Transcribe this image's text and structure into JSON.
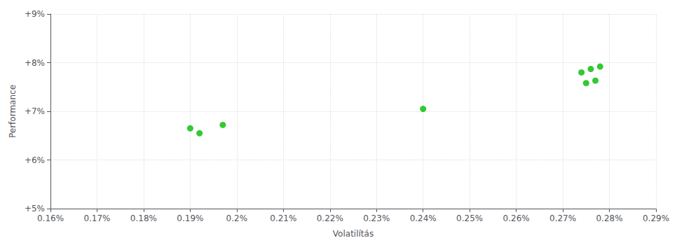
{
  "chart_data": {
    "type": "scatter",
    "x": [
      0.0019,
      0.00192,
      0.00197,
      0.0024,
      0.00274,
      0.00276,
      0.00278,
      0.00275,
      0.00277
    ],
    "values": [
      0.0665,
      0.0655,
      0.0672,
      0.0705,
      0.078,
      0.0787,
      0.0792,
      0.0758,
      0.0763
    ],
    "color": "#00bb00",
    "xlabel": "Volatilítás",
    "ylabel": "Performance",
    "xlim": [
      0.0016,
      0.0029
    ],
    "ylim": [
      0.05,
      0.09
    ],
    "xticks": [
      {
        "value": 0.0016,
        "label": "0.16%"
      },
      {
        "value": 0.0017,
        "label": "0.17%"
      },
      {
        "value": 0.0018,
        "label": "0.18%"
      },
      {
        "value": 0.0019,
        "label": "0.19%"
      },
      {
        "value": 0.002,
        "label": "0.2%"
      },
      {
        "value": 0.0021,
        "label": "0.21%"
      },
      {
        "value": 0.0022,
        "label": "0.22%"
      },
      {
        "value": 0.0023,
        "label": "0.23%"
      },
      {
        "value": 0.0024,
        "label": "0.24%"
      },
      {
        "value": 0.0025,
        "label": "0.25%"
      },
      {
        "value": 0.0026,
        "label": "0.26%"
      },
      {
        "value": 0.0027,
        "label": "0.27%"
      },
      {
        "value": 0.0028,
        "label": "0.28%"
      },
      {
        "value": 0.0029,
        "label": "0.29%"
      }
    ],
    "yticks": [
      {
        "value": 0.05,
        "label": "+5%"
      },
      {
        "value": 0.06,
        "label": "+6%"
      },
      {
        "value": 0.07,
        "label": "+7%"
      },
      {
        "value": 0.08,
        "label": "+8%"
      },
      {
        "value": 0.09,
        "label": "+9%"
      }
    ],
    "grid": true
  }
}
